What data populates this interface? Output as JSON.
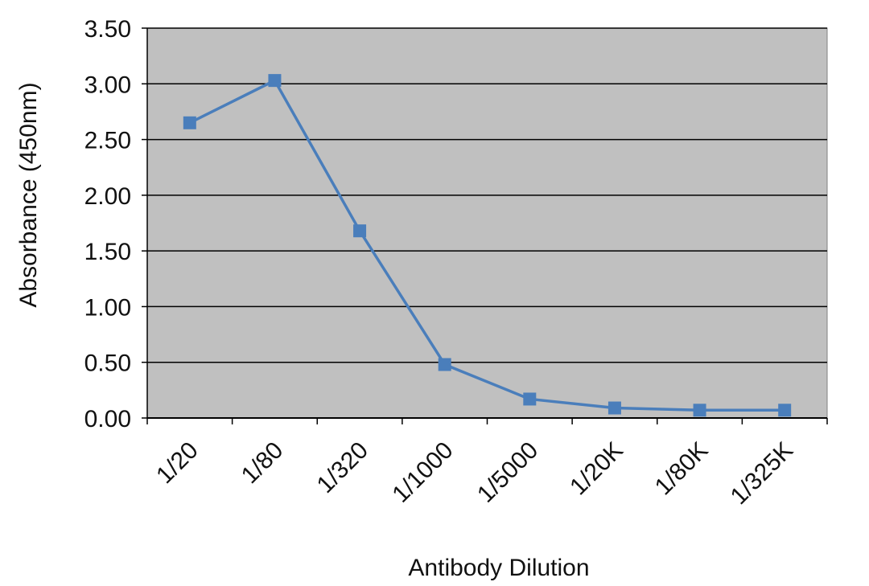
{
  "chart_data": {
    "type": "line",
    "title": "",
    "xlabel": "Antibody Dilution",
    "ylabel": "Absorbance (450nm)",
    "categories": [
      "1/20",
      "1/80",
      "1/320",
      "1/1000",
      "1/5000",
      "1/20K",
      "1/80K",
      "1/325K"
    ],
    "series": [
      {
        "values": [
          2.65,
          3.03,
          1.68,
          0.48,
          0.17,
          0.09,
          0.07,
          0.07
        ]
      }
    ],
    "ylim": [
      0,
      3.5
    ],
    "yticks": [
      "0.00",
      "0.50",
      "1.00",
      "1.50",
      "2.00",
      "2.50",
      "3.00",
      "3.50"
    ],
    "grid": true,
    "legend": "none",
    "colors": {
      "plot_background": "#c0c0c0",
      "gridline": "#000000",
      "series": "#4a7ebb"
    }
  }
}
